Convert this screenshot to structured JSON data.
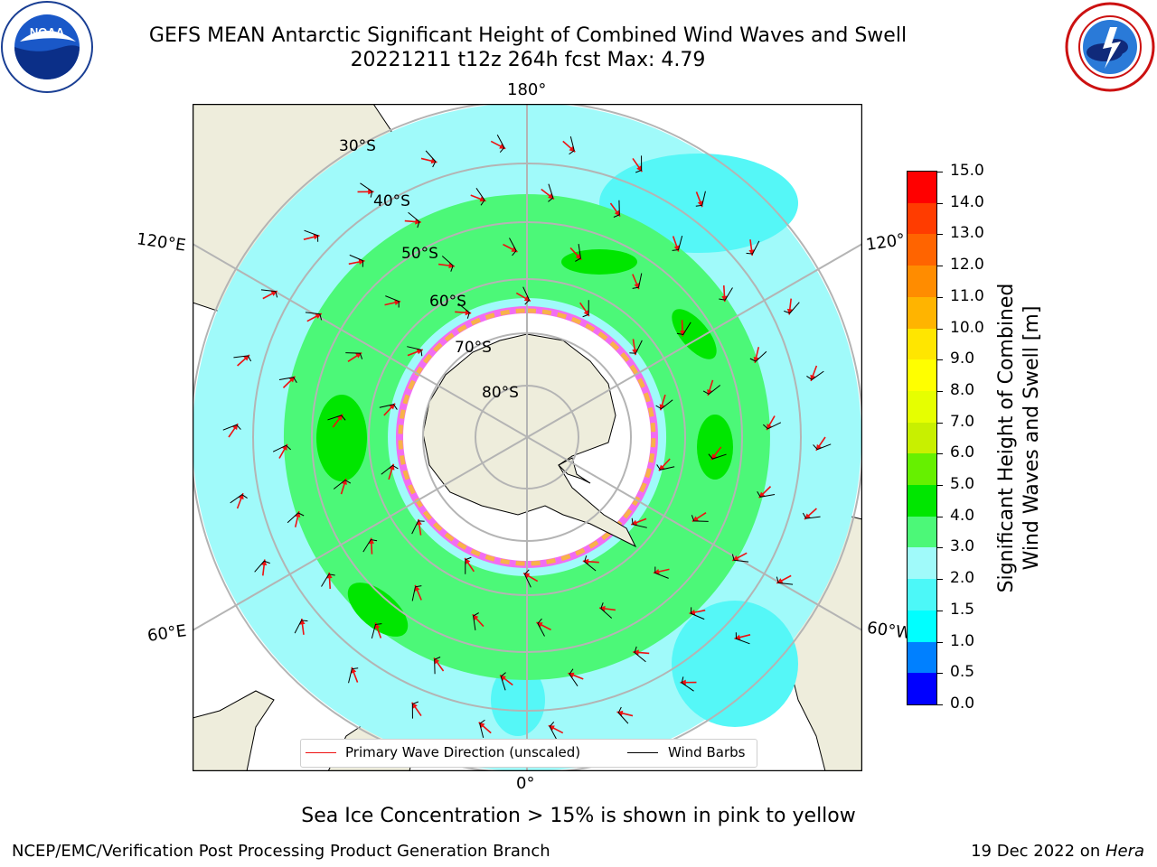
{
  "header": {
    "title_line1": "GEFS MEAN Antarctic Significant Height of Combined Wind Waves and Swell",
    "title_line2": "20221211 t12z 264h fcst   Max: 4.79"
  },
  "logos": {
    "left": "noaa-logo",
    "right": "national-weather-service-logo",
    "left_text": "NOAA"
  },
  "map": {
    "projection": "south-polar-stereographic",
    "longitude_labels": {
      "top": "180°",
      "bottom": "0°",
      "left_upper": "120°E",
      "right_upper": "120°",
      "left_lower": "60°E",
      "right_lower": "60°W"
    },
    "latitude_labels": [
      "30°S",
      "40°S",
      "50°S",
      "60°S",
      "70°S",
      "80°S"
    ],
    "colors": {
      "land": "#eeeddc",
      "ocean_low": "#9ffcfc",
      "ocean_mid": "#4cfb74",
      "ocean_swell": "#55f7f7",
      "ice_pink": "#f26df2",
      "ice_orange": "#f8b24a",
      "grid": "#b4b4b4",
      "wave_arrow": "#ee1111",
      "wind_barb": "#000000"
    },
    "legend": {
      "wave_direction": "Primary Wave Direction (unscaled)",
      "wind_barbs": "Wind Barbs"
    }
  },
  "colorbar": {
    "title_line1": "Significant Height of Combined",
    "title_line2": "Wind Waves and Swell [m]",
    "tick_labels": [
      "15.0",
      "14.0",
      "13.0",
      "12.0",
      "11.0",
      "10.0",
      "9.0",
      "8.0",
      "7.0",
      "6.0",
      "5.0",
      "4.0",
      "3.0",
      "2.0",
      "1.5",
      "1.0",
      "0.5",
      "0.0"
    ],
    "bands": [
      {
        "from": "0.0",
        "to": "0.5",
        "color": "#0000ff"
      },
      {
        "from": "0.5",
        "to": "1.0",
        "color": "#0080ff"
      },
      {
        "from": "1.0",
        "to": "1.5",
        "color": "#00ffff"
      },
      {
        "from": "1.5",
        "to": "2.0",
        "color": "#4cf8f8"
      },
      {
        "from": "2.0",
        "to": "3.0",
        "color": "#a0fafa"
      },
      {
        "from": "3.0",
        "to": "4.0",
        "color": "#4cf878"
      },
      {
        "from": "4.0",
        "to": "5.0",
        "color": "#00e600"
      },
      {
        "from": "5.0",
        "to": "6.0",
        "color": "#66f000"
      },
      {
        "from": "6.0",
        "to": "7.0",
        "color": "#c8f000"
      },
      {
        "from": "7.0",
        "to": "8.0",
        "color": "#e6ff00"
      },
      {
        "from": "8.0",
        "to": "9.0",
        "color": "#ffff00"
      },
      {
        "from": "9.0",
        "to": "10.0",
        "color": "#ffe600"
      },
      {
        "from": "10.0",
        "to": "11.0",
        "color": "#ffb400"
      },
      {
        "from": "11.0",
        "to": "12.0",
        "color": "#ff8c00"
      },
      {
        "from": "12.0",
        "to": "13.0",
        "color": "#ff6400"
      },
      {
        "from": "13.0",
        "to": "14.0",
        "color": "#ff3c00"
      },
      {
        "from": "14.0",
        "to": "15.0",
        "color": "#ff0000"
      }
    ]
  },
  "footer": {
    "sea_ice_note": "Sea Ice Concentration > 15% is shown in pink to yellow",
    "credit": "NCEP/EMC/Verification Post Processing Product Generation Branch",
    "date": "19 Dec 2022 on ",
    "machine": "Hera"
  }
}
